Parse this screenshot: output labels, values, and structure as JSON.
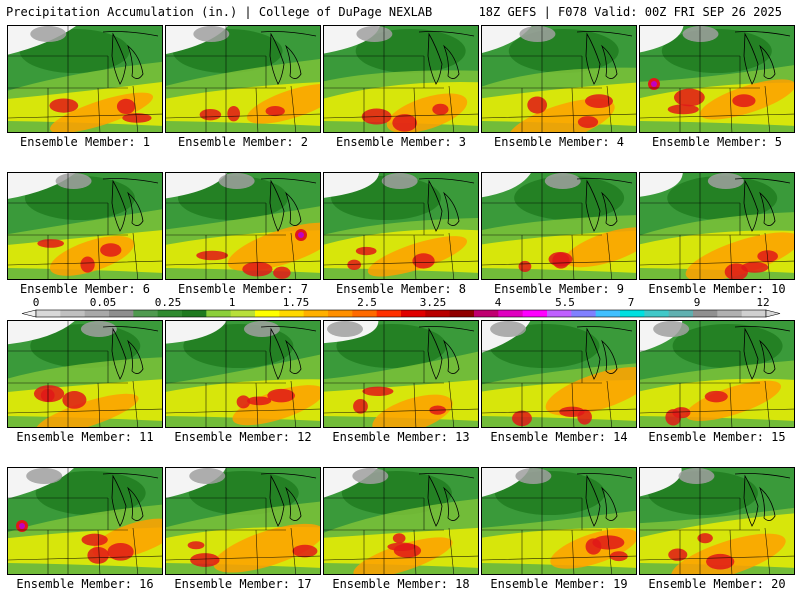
{
  "header": {
    "title": "Precipitation Accumulation (in.) | College of DuPage NEXLAB",
    "valid": "18Z GEFS | F078 Valid: 00Z FRI SEP 26 2025"
  },
  "caption_prefix": "Ensemble Member: ",
  "members": [
    {
      "label": "Ensemble Member: 1"
    },
    {
      "label": "Ensemble Member: 2"
    },
    {
      "label": "Ensemble Member: 3"
    },
    {
      "label": "Ensemble Member: 4"
    },
    {
      "label": "Ensemble Member: 5"
    },
    {
      "label": "Ensemble Member: 6"
    },
    {
      "label": "Ensemble Member: 7"
    },
    {
      "label": "Ensemble Member: 8"
    },
    {
      "label": "Ensemble Member: 9"
    },
    {
      "label": "Ensemble Member: 10"
    },
    {
      "label": "Ensemble Member: 11"
    },
    {
      "label": "Ensemble Member: 12"
    },
    {
      "label": "Ensemble Member: 13"
    },
    {
      "label": "Ensemble Member: 14"
    },
    {
      "label": "Ensemble Member: 15"
    },
    {
      "label": "Ensemble Member: 16"
    },
    {
      "label": "Ensemble Member: 17"
    },
    {
      "label": "Ensemble Member: 18"
    },
    {
      "label": "Ensemble Member: 19"
    },
    {
      "label": "Ensemble Member: 20"
    }
  ],
  "legend": {
    "labels": [
      "0",
      "0.05",
      "0.25",
      "1",
      "1.75",
      "2.5",
      "3.25",
      "4",
      "5.5",
      "7",
      "9",
      "12"
    ],
    "colors": [
      "#d8d8d8",
      "#c0c0c0",
      "#a8a8a8",
      "#8e8e8e",
      "#4f9a4f",
      "#2f8a2f",
      "#1f7a1f",
      "#8ccf3a",
      "#b8e03a",
      "#ffff00",
      "#ffd800",
      "#ffb000",
      "#ff9000",
      "#ff6a00",
      "#ff3000",
      "#e00000",
      "#b80000",
      "#900000",
      "#c00070",
      "#e000c0",
      "#ff00ff",
      "#c060ff",
      "#8080ff",
      "#40c0ff",
      "#00e0e0",
      "#40c8c8",
      "#60b0b0",
      "#909090",
      "#b0b0b0",
      "#d0d0d0"
    ]
  },
  "palette": {
    "green_dark": "#1f7a1f",
    "green": "#3a9a3a",
    "green_light": "#7cc23a",
    "yellow": "#f0f000",
    "orange": "#ffa000",
    "red": "#e01818",
    "magenta": "#c000c0",
    "gray": "#a0a0a0",
    "white": "#f4f4f4"
  }
}
